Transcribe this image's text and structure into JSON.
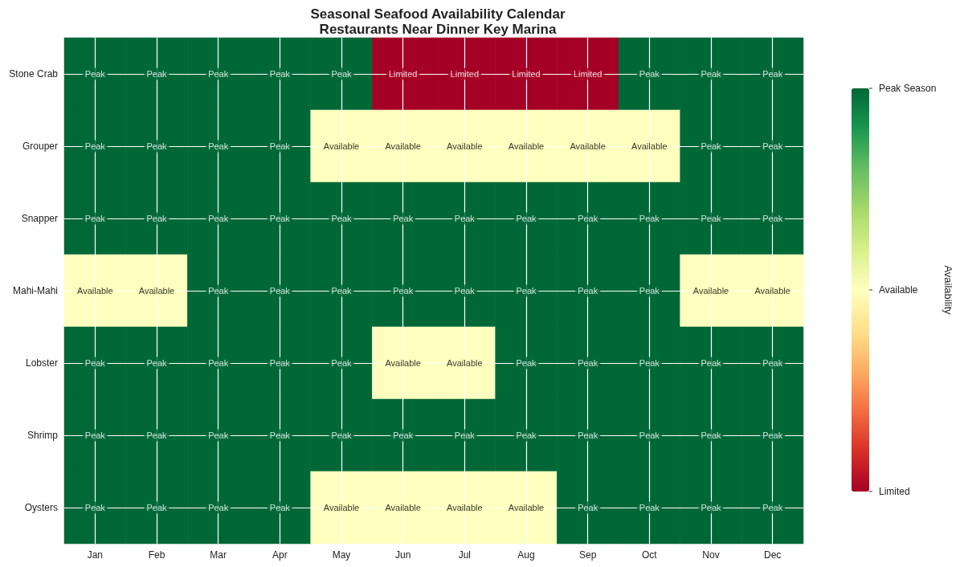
{
  "chart_data": {
    "type": "heatmap",
    "title": "Seasonal Seafood Availability Calendar",
    "subtitle": "Restaurants Near Dinner Key Marina",
    "clabel": "Availability",
    "categories": [
      "Jan",
      "Feb",
      "Mar",
      "Apr",
      "May",
      "Jun",
      "Jul",
      "Aug",
      "Sep",
      "Oct",
      "Nov",
      "Dec"
    ],
    "y_categories": [
      "Stone Crab",
      "Grouper",
      "Snapper",
      "Mahi-Mahi",
      "Lobster",
      "Shrimp",
      "Oysters"
    ],
    "cells": [
      [
        2,
        2,
        2,
        2,
        2,
        0,
        0,
        0,
        0,
        2,
        2,
        2
      ],
      [
        2,
        2,
        2,
        2,
        1,
        1,
        1,
        1,
        1,
        1,
        2,
        2
      ],
      [
        2,
        2,
        2,
        2,
        2,
        2,
        2,
        2,
        2,
        2,
        2,
        2
      ],
      [
        1,
        1,
        2,
        2,
        2,
        2,
        2,
        2,
        2,
        2,
        1,
        1
      ],
      [
        2,
        2,
        2,
        2,
        2,
        1,
        1,
        2,
        2,
        2,
        2,
        2
      ],
      [
        2,
        2,
        2,
        2,
        2,
        2,
        2,
        2,
        2,
        2,
        2,
        2
      ],
      [
        2,
        2,
        2,
        2,
        1,
        1,
        1,
        1,
        2,
        2,
        2,
        2
      ]
    ],
    "cell_labels": [
      [
        "Peak",
        "Peak",
        "Peak",
        "Peak",
        "Peak",
        "Limited",
        "Limited",
        "Limited",
        "Limited",
        "Peak",
        "Peak",
        "Peak"
      ],
      [
        "Peak",
        "Peak",
        "Peak",
        "Peak",
        "Available",
        "Available",
        "Available",
        "Available",
        "Available",
        "Available",
        "Peak",
        "Peak"
      ],
      [
        "Peak",
        "Peak",
        "Peak",
        "Peak",
        "Peak",
        "Peak",
        "Peak",
        "Peak",
        "Peak",
        "Peak",
        "Peak",
        "Peak"
      ],
      [
        "Available",
        "Available",
        "Peak",
        "Peak",
        "Peak",
        "Peak",
        "Peak",
        "Peak",
        "Peak",
        "Peak",
        "Available",
        "Available"
      ],
      [
        "Peak",
        "Peak",
        "Peak",
        "Peak",
        "Peak",
        "Available",
        "Available",
        "Peak",
        "Peak",
        "Peak",
        "Peak",
        "Peak"
      ],
      [
        "Peak",
        "Peak",
        "Peak",
        "Peak",
        "Peak",
        "Peak",
        "Peak",
        "Peak",
        "Peak",
        "Peak",
        "Peak",
        "Peak"
      ],
      [
        "Peak",
        "Peak",
        "Peak",
        "Peak",
        "Available",
        "Available",
        "Available",
        "Available",
        "Peak",
        "Peak",
        "Peak",
        "Peak"
      ]
    ],
    "clim": [
      0,
      2
    ],
    "cticks": [
      {
        "value": 0,
        "label": "Limited"
      },
      {
        "value": 1,
        "label": "Available"
      },
      {
        "value": 2,
        "label": "Peak Season"
      }
    ],
    "grid": true
  }
}
